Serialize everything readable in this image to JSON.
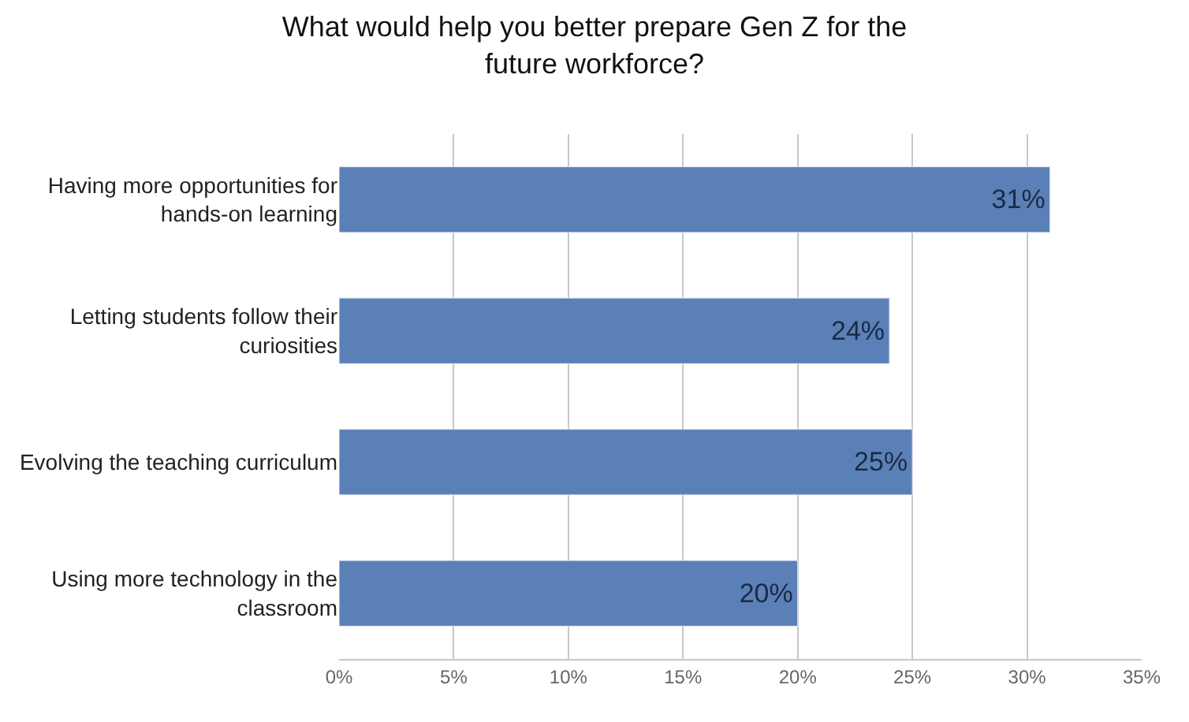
{
  "chart_data": {
    "type": "bar",
    "orientation": "horizontal",
    "title": "What would help you better prepare Gen Z for the future workforce?",
    "categories": [
      "Having more opportunities for hands-on learning",
      "Letting students follow their curiosities",
      "Evolving the teaching curriculum",
      "Using more technology in the classroom"
    ],
    "values": [
      31,
      24,
      25,
      20
    ],
    "value_labels": [
      "31%",
      "24%",
      "25%",
      "20%"
    ],
    "color": "#5b80b8",
    "xlim": [
      0,
      35
    ],
    "xticks": [
      {
        "value": 0,
        "label": "0%"
      },
      {
        "value": 5,
        "label": "5%"
      },
      {
        "value": 10,
        "label": "10%"
      },
      {
        "value": 15,
        "label": "15%"
      },
      {
        "value": 20,
        "label": "20%"
      },
      {
        "value": 25,
        "label": "25%"
      },
      {
        "value": 30,
        "label": "30%"
      },
      {
        "value": 35,
        "label": "35%"
      }
    ],
    "grid": "x",
    "legend": false
  }
}
